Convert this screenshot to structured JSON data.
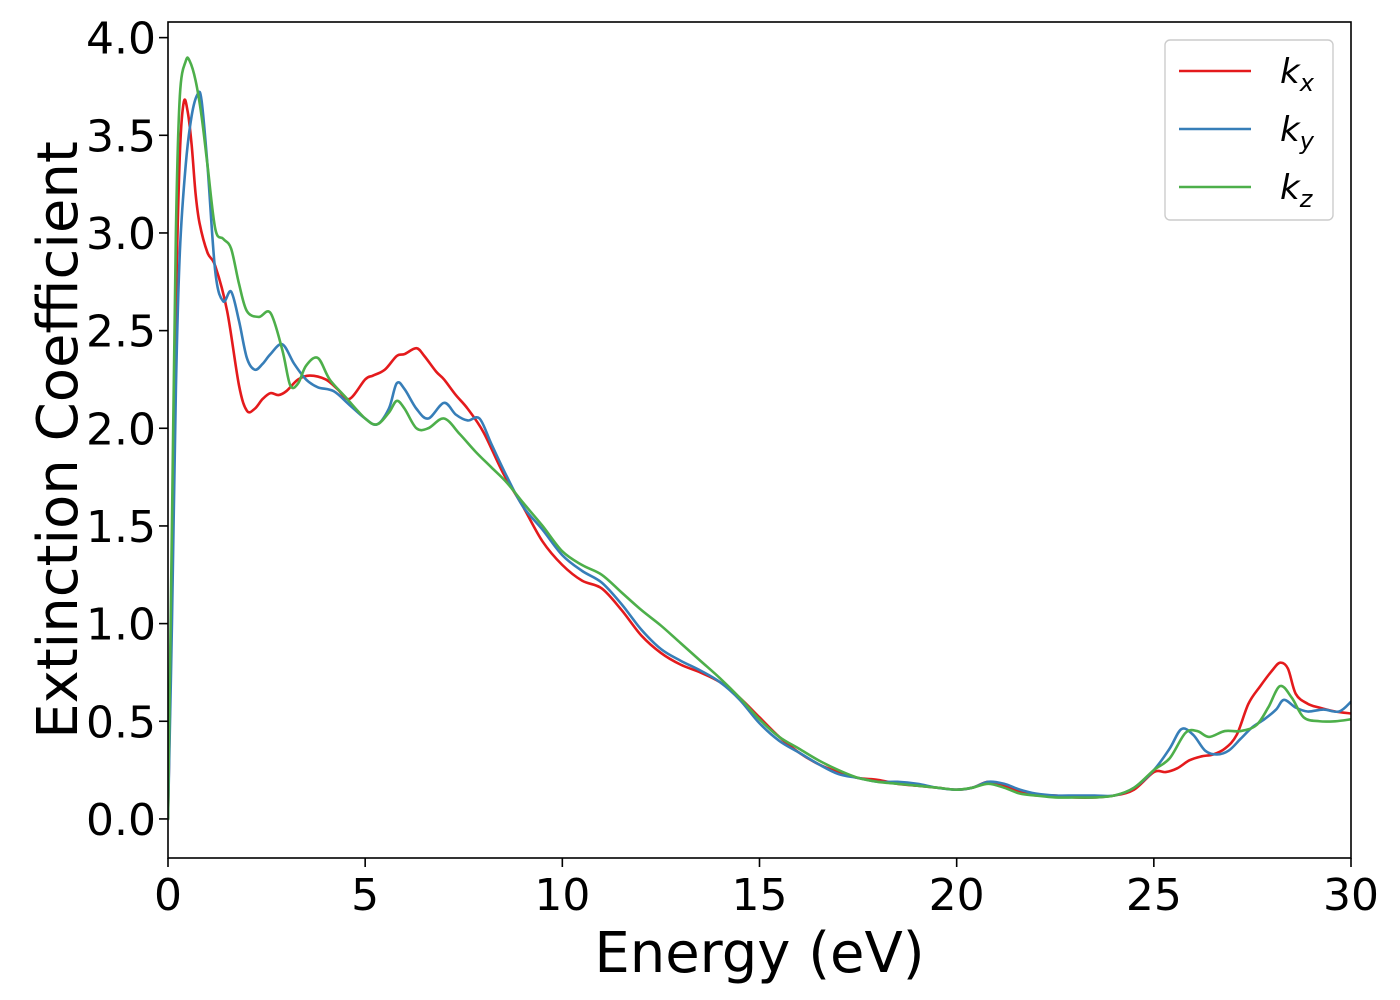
{
  "chart_data": {
    "type": "line",
    "xlabel": "Energy (eV)",
    "ylabel": "Extinction Coefficient",
    "xlim": [
      0,
      30
    ],
    "ylim": [
      -0.2,
      4.08
    ],
    "xticks": [
      0,
      5,
      10,
      15,
      20,
      25,
      30
    ],
    "yticks": [
      0.0,
      0.5,
      1.0,
      1.5,
      2.0,
      2.5,
      3.0,
      3.5,
      4.0
    ],
    "xtick_labels": [
      "0",
      "5",
      "10",
      "15",
      "20",
      "25",
      "30"
    ],
    "ytick_labels": [
      "0.0",
      "0.5",
      "1.0",
      "1.5",
      "2.0",
      "2.5",
      "3.0",
      "3.5",
      "4.0"
    ],
    "grid": false,
    "legend_position": "top-right",
    "series": [
      {
        "name": "k_x",
        "legend_main": "k",
        "legend_sub": "x",
        "color": "#e41a1c",
        "x": [
          0,
          0.1,
          0.2,
          0.3,
          0.4,
          0.5,
          0.6,
          0.7,
          0.8,
          1.0,
          1.2,
          1.5,
          1.8,
          2.0,
          2.2,
          2.4,
          2.6,
          2.8,
          3.0,
          3.3,
          3.6,
          4.0,
          4.3,
          4.6,
          5.0,
          5.2,
          5.5,
          5.8,
          6.0,
          6.3,
          6.5,
          6.8,
          7.0,
          7.3,
          7.6,
          8.0,
          8.5,
          9.0,
          9.5,
          10.0,
          10.5,
          11.0,
          11.5,
          12.0,
          12.5,
          13.0,
          13.5,
          14.0,
          14.5,
          15.0,
          15.5,
          16.0,
          16.5,
          17.0,
          17.5,
          18.0,
          18.5,
          19.0,
          19.5,
          20.0,
          20.4,
          20.8,
          21.2,
          21.6,
          22.0,
          22.5,
          23.0,
          23.5,
          24.0,
          24.5,
          25.0,
          25.3,
          25.6,
          25.9,
          26.2,
          26.5,
          26.8,
          27.1,
          27.4,
          27.7,
          28.0,
          28.2,
          28.4,
          28.6,
          28.9,
          29.2,
          29.6,
          30.0
        ],
        "y": [
          0.0,
          1.2,
          2.6,
          3.4,
          3.67,
          3.62,
          3.45,
          3.2,
          3.05,
          2.9,
          2.83,
          2.6,
          2.22,
          2.09,
          2.1,
          2.15,
          2.18,
          2.17,
          2.19,
          2.25,
          2.27,
          2.25,
          2.2,
          2.15,
          2.25,
          2.27,
          2.3,
          2.37,
          2.38,
          2.41,
          2.37,
          2.29,
          2.25,
          2.17,
          2.1,
          1.98,
          1.77,
          1.6,
          1.42,
          1.3,
          1.22,
          1.18,
          1.07,
          0.94,
          0.85,
          0.79,
          0.75,
          0.7,
          0.62,
          0.52,
          0.42,
          0.34,
          0.28,
          0.24,
          0.21,
          0.2,
          0.18,
          0.17,
          0.16,
          0.15,
          0.16,
          0.19,
          0.17,
          0.14,
          0.12,
          0.12,
          0.11,
          0.11,
          0.12,
          0.15,
          0.24,
          0.24,
          0.26,
          0.3,
          0.32,
          0.33,
          0.36,
          0.43,
          0.59,
          0.68,
          0.76,
          0.8,
          0.77,
          0.64,
          0.59,
          0.57,
          0.55,
          0.54
        ]
      },
      {
        "name": "k_y",
        "legend_main": "k",
        "legend_sub": "y",
        "color": "#377eb8",
        "x": [
          0,
          0.1,
          0.2,
          0.3,
          0.45,
          0.6,
          0.75,
          0.85,
          1.0,
          1.2,
          1.4,
          1.6,
          1.8,
          2.0,
          2.2,
          2.4,
          2.6,
          2.9,
          3.2,
          3.5,
          3.8,
          4.2,
          4.6,
          5.0,
          5.3,
          5.6,
          5.8,
          6.0,
          6.3,
          6.6,
          7.0,
          7.3,
          7.6,
          7.9,
          8.2,
          8.6,
          9.0,
          9.5,
          10.0,
          10.5,
          11.0,
          11.5,
          12.0,
          12.5,
          13.0,
          13.5,
          14.0,
          14.5,
          15.0,
          15.5,
          16.0,
          16.5,
          17.0,
          17.5,
          18.0,
          18.5,
          19.0,
          19.5,
          20.0,
          20.4,
          20.8,
          21.2,
          21.6,
          22.0,
          22.5,
          23.0,
          23.5,
          24.0,
          24.5,
          25.0,
          25.4,
          25.7,
          26.0,
          26.3,
          26.6,
          26.9,
          27.2,
          27.5,
          27.8,
          28.1,
          28.3,
          28.6,
          28.9,
          29.3,
          29.7,
          30.0
        ],
        "y": [
          0.0,
          1.0,
          2.2,
          2.9,
          3.35,
          3.6,
          3.71,
          3.68,
          3.35,
          2.8,
          2.65,
          2.7,
          2.55,
          2.36,
          2.3,
          2.33,
          2.38,
          2.43,
          2.33,
          2.25,
          2.21,
          2.19,
          2.12,
          2.05,
          2.02,
          2.1,
          2.23,
          2.2,
          2.1,
          2.05,
          2.13,
          2.07,
          2.04,
          2.05,
          1.92,
          1.75,
          1.6,
          1.48,
          1.35,
          1.27,
          1.21,
          1.1,
          0.97,
          0.87,
          0.81,
          0.76,
          0.7,
          0.61,
          0.49,
          0.4,
          0.34,
          0.28,
          0.23,
          0.21,
          0.19,
          0.19,
          0.18,
          0.16,
          0.15,
          0.16,
          0.19,
          0.18,
          0.15,
          0.13,
          0.12,
          0.12,
          0.12,
          0.12,
          0.16,
          0.25,
          0.36,
          0.46,
          0.43,
          0.35,
          0.33,
          0.35,
          0.41,
          0.47,
          0.51,
          0.56,
          0.61,
          0.57,
          0.55,
          0.56,
          0.55,
          0.6
        ]
      },
      {
        "name": "k_z",
        "legend_main": "k",
        "legend_sub": "z",
        "color": "#4daf4a",
        "x": [
          0,
          0.1,
          0.2,
          0.3,
          0.45,
          0.55,
          0.7,
          0.85,
          1.0,
          1.2,
          1.4,
          1.6,
          1.8,
          2.0,
          2.3,
          2.6,
          2.9,
          3.1,
          3.3,
          3.5,
          3.8,
          4.1,
          4.5,
          5.0,
          5.3,
          5.6,
          5.8,
          6.0,
          6.3,
          6.6,
          7.0,
          7.4,
          7.8,
          8.2,
          8.6,
          9.0,
          9.5,
          10.0,
          10.5,
          11.0,
          11.5,
          12.0,
          12.5,
          13.0,
          13.5,
          14.0,
          14.5,
          15.0,
          15.5,
          16.0,
          16.5,
          17.0,
          17.5,
          18.0,
          18.5,
          19.0,
          19.5,
          20.0,
          20.4,
          20.8,
          21.2,
          21.6,
          22.0,
          22.5,
          23.0,
          23.5,
          24.0,
          24.5,
          25.0,
          25.4,
          25.8,
          26.1,
          26.4,
          26.8,
          27.2,
          27.6,
          27.9,
          28.2,
          28.5,
          28.8,
          29.2,
          29.6,
          30.0
        ],
        "y": [
          0.0,
          1.5,
          3.0,
          3.7,
          3.88,
          3.88,
          3.78,
          3.6,
          3.35,
          3.02,
          2.97,
          2.92,
          2.74,
          2.6,
          2.57,
          2.59,
          2.4,
          2.22,
          2.23,
          2.32,
          2.36,
          2.25,
          2.16,
          2.05,
          2.02,
          2.08,
          2.14,
          2.1,
          2.0,
          2.0,
          2.05,
          1.97,
          1.88,
          1.8,
          1.72,
          1.62,
          1.5,
          1.37,
          1.3,
          1.25,
          1.16,
          1.07,
          0.99,
          0.9,
          0.81,
          0.72,
          0.62,
          0.51,
          0.42,
          0.36,
          0.3,
          0.25,
          0.21,
          0.19,
          0.18,
          0.17,
          0.16,
          0.15,
          0.16,
          0.18,
          0.16,
          0.13,
          0.12,
          0.11,
          0.11,
          0.11,
          0.12,
          0.16,
          0.25,
          0.31,
          0.44,
          0.45,
          0.42,
          0.45,
          0.45,
          0.48,
          0.57,
          0.68,
          0.62,
          0.52,
          0.5,
          0.5,
          0.51
        ]
      }
    ]
  }
}
